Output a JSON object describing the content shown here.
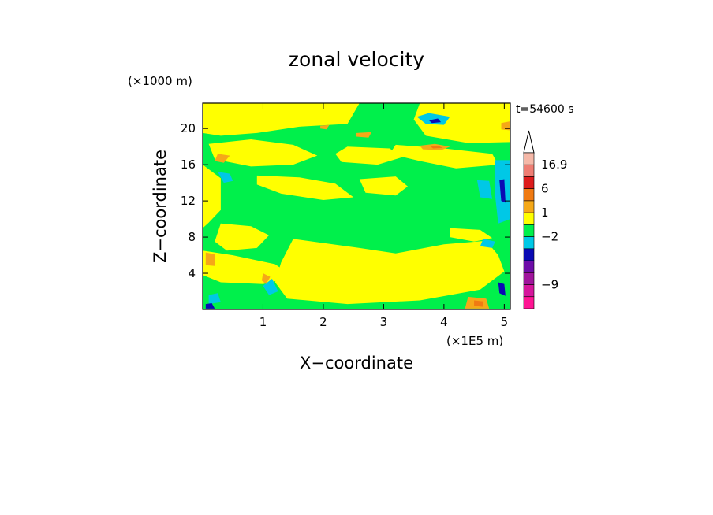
{
  "chart_data": {
    "type": "heatmap",
    "title": "zonal velocity",
    "xlabel": "X−coordinate",
    "ylabel": "Z−coordinate",
    "x_unit": "(×1E5 m)",
    "y_unit": "(×1000 m)",
    "time_label": "t=54600 s",
    "xlim": [
      0,
      5.1
    ],
    "ylim": [
      0,
      22.8
    ],
    "xticks": [
      1,
      2,
      3,
      4,
      5
    ],
    "yticks": [
      4,
      8,
      12,
      16,
      20
    ],
    "background_field": "green",
    "regions": [
      {
        "level": "yellow",
        "polygon": [
          [
            0,
            22.8
          ],
          [
            2.6,
            22.8
          ],
          [
            2.4,
            20.5
          ],
          [
            1.6,
            20.2
          ],
          [
            0.9,
            19.5
          ],
          [
            0.3,
            19.2
          ],
          [
            0,
            19.5
          ]
        ]
      },
      {
        "level": "yellow",
        "polygon": [
          [
            0.1,
            18.3
          ],
          [
            0.8,
            18.8
          ],
          [
            1.5,
            18.2
          ],
          [
            1.9,
            17.0
          ],
          [
            1.5,
            16.0
          ],
          [
            0.8,
            15.8
          ],
          [
            0.2,
            16.6
          ]
        ]
      },
      {
        "level": "yellow",
        "polygon": [
          [
            2.4,
            18.0
          ],
          [
            3.1,
            17.8
          ],
          [
            3.3,
            16.8
          ],
          [
            2.9,
            16.0
          ],
          [
            2.3,
            16.3
          ],
          [
            2.2,
            17.2
          ]
        ]
      },
      {
        "level": "yellow",
        "polygon": [
          [
            3.6,
            22.8
          ],
          [
            5.1,
            22.8
          ],
          [
            5.1,
            18.5
          ],
          [
            4.4,
            18.4
          ],
          [
            3.7,
            19.2
          ],
          [
            3.5,
            21.0
          ]
        ]
      },
      {
        "level": "yellow",
        "polygon": [
          [
            3.2,
            18.2
          ],
          [
            4.0,
            17.8
          ],
          [
            4.8,
            17.2
          ],
          [
            4.9,
            16.0
          ],
          [
            4.2,
            15.6
          ],
          [
            3.6,
            16.4
          ],
          [
            3.1,
            17.2
          ]
        ]
      },
      {
        "level": "yellow",
        "polygon": [
          [
            0.9,
            14.8
          ],
          [
            1.6,
            14.6
          ],
          [
            2.2,
            13.9
          ],
          [
            2.5,
            12.4
          ],
          [
            2.0,
            12.1
          ],
          [
            1.3,
            12.8
          ],
          [
            0.9,
            13.8
          ]
        ]
      },
      {
        "level": "yellow",
        "polygon": [
          [
            2.6,
            14.4
          ],
          [
            3.2,
            14.7
          ],
          [
            3.4,
            13.6
          ],
          [
            3.2,
            12.6
          ],
          [
            2.7,
            12.9
          ]
        ]
      },
      {
        "level": "yellow",
        "polygon": [
          [
            0,
            16.0
          ],
          [
            0.3,
            14.5
          ],
          [
            0.3,
            11.0
          ],
          [
            0.1,
            9.6
          ],
          [
            0,
            9.0
          ]
        ]
      },
      {
        "level": "yellow",
        "polygon": [
          [
            0.3,
            9.5
          ],
          [
            0.8,
            9.2
          ],
          [
            1.1,
            8.2
          ],
          [
            0.9,
            6.8
          ],
          [
            0.4,
            6.5
          ],
          [
            0.2,
            7.5
          ]
        ]
      },
      {
        "level": "yellow",
        "polygon": [
          [
            0,
            6.5
          ],
          [
            0.5,
            6.0
          ],
          [
            1.2,
            5.0
          ],
          [
            1.5,
            3.6
          ],
          [
            1.0,
            2.8
          ],
          [
            0.3,
            3.0
          ],
          [
            0,
            3.8
          ]
        ]
      },
      {
        "level": "yellow",
        "polygon": [
          [
            1.5,
            7.8
          ],
          [
            2.6,
            6.8
          ],
          [
            3.2,
            6.2
          ],
          [
            4.0,
            7.2
          ],
          [
            4.7,
            7.6
          ],
          [
            4.9,
            6.0
          ],
          [
            5.0,
            4.2
          ],
          [
            4.6,
            2.2
          ],
          [
            3.6,
            1.0
          ],
          [
            2.4,
            0.6
          ],
          [
            1.4,
            1.2
          ],
          [
            1.2,
            3.0
          ],
          [
            1.3,
            5.2
          ]
        ]
      },
      {
        "level": "yellow",
        "polygon": [
          [
            4.1,
            9.0
          ],
          [
            4.6,
            8.8
          ],
          [
            4.8,
            7.9
          ],
          [
            4.5,
            7.5
          ],
          [
            4.1,
            8.0
          ]
        ]
      },
      {
        "level": "cyan",
        "polygon": [
          [
            3.55,
            21.3
          ],
          [
            3.75,
            21.7
          ],
          [
            4.1,
            21.3
          ],
          [
            4.0,
            20.4
          ],
          [
            3.7,
            20.5
          ]
        ]
      },
      {
        "level": "blue",
        "polygon": [
          [
            3.75,
            20.9
          ],
          [
            3.9,
            21.1
          ],
          [
            3.95,
            20.7
          ],
          [
            3.8,
            20.6
          ]
        ]
      },
      {
        "level": "cyan",
        "polygon": [
          [
            0.25,
            15.2
          ],
          [
            0.45,
            15.0
          ],
          [
            0.5,
            14.2
          ],
          [
            0.35,
            14.0
          ]
        ]
      },
      {
        "level": "cyan",
        "polygon": [
          [
            4.55,
            14.3
          ],
          [
            4.75,
            14.2
          ],
          [
            4.8,
            12.2
          ],
          [
            4.6,
            12.4
          ]
        ]
      },
      {
        "level": "cyan",
        "polygon": [
          [
            4.65,
            7.8
          ],
          [
            4.85,
            7.5
          ],
          [
            4.8,
            6.8
          ],
          [
            4.6,
            7.0
          ]
        ]
      },
      {
        "level": "cyan",
        "polygon": [
          [
            4.85,
            16.5
          ],
          [
            5.1,
            16.5
          ],
          [
            5.1,
            10.0
          ],
          [
            4.9,
            9.5
          ],
          [
            4.85,
            12.5
          ]
        ]
      },
      {
        "level": "blue",
        "polygon": [
          [
            4.92,
            14.3
          ],
          [
            5.0,
            14.4
          ],
          [
            5.02,
            11.8
          ],
          [
            4.95,
            12.0
          ]
        ]
      },
      {
        "level": "blue",
        "polygon": [
          [
            4.9,
            3.0
          ],
          [
            5.0,
            2.8
          ],
          [
            5.02,
            1.5
          ],
          [
            4.92,
            1.8
          ]
        ]
      },
      {
        "level": "cyan",
        "polygon": [
          [
            1.0,
            2.6
          ],
          [
            1.15,
            3.4
          ],
          [
            1.25,
            2.0
          ],
          [
            1.1,
            1.6
          ]
        ]
      },
      {
        "level": "cyan",
        "polygon": [
          [
            0.1,
            1.6
          ],
          [
            0.25,
            1.8
          ],
          [
            0.3,
            0.8
          ],
          [
            0.1,
            0.6
          ]
        ]
      },
      {
        "level": "blue",
        "polygon": [
          [
            0.05,
            0.6
          ],
          [
            0.15,
            0.7
          ],
          [
            0.2,
            0.1
          ],
          [
            0.05,
            0.1
          ]
        ]
      },
      {
        "level": "orange-light",
        "polygon": [
          [
            3.6,
            18.1
          ],
          [
            3.85,
            18.3
          ],
          [
            4.1,
            18.0
          ],
          [
            3.95,
            17.6
          ],
          [
            3.65,
            17.7
          ]
        ]
      },
      {
        "level": "orange",
        "polygon": [
          [
            3.78,
            18.0
          ],
          [
            3.9,
            18.1
          ],
          [
            3.98,
            17.85
          ],
          [
            3.82,
            17.8
          ]
        ]
      },
      {
        "level": "orange-light",
        "polygon": [
          [
            0.25,
            17.2
          ],
          [
            0.45,
            17.0
          ],
          [
            0.35,
            16.2
          ],
          [
            0.2,
            16.4
          ]
        ]
      },
      {
        "level": "orange-light",
        "polygon": [
          [
            0.05,
            6.3
          ],
          [
            0.2,
            6.1
          ],
          [
            0.2,
            4.8
          ],
          [
            0.05,
            4.9
          ]
        ]
      },
      {
        "level": "orange-light",
        "polygon": [
          [
            1.0,
            4.0
          ],
          [
            1.12,
            3.6
          ],
          [
            1.05,
            2.8
          ],
          [
            0.98,
            3.2
          ]
        ]
      },
      {
        "level": "orange-light",
        "polygon": [
          [
            4.4,
            1.4
          ],
          [
            4.7,
            1.2
          ],
          [
            4.75,
            0.1
          ],
          [
            4.35,
            0.1
          ]
        ]
      },
      {
        "level": "orange",
        "polygon": [
          [
            4.5,
            1.0
          ],
          [
            4.65,
            0.9
          ],
          [
            4.65,
            0.3
          ],
          [
            4.5,
            0.4
          ]
        ]
      },
      {
        "level": "orange-light",
        "polygon": [
          [
            1.95,
            20.3
          ],
          [
            2.1,
            20.4
          ],
          [
            2.05,
            19.9
          ],
          [
            1.95,
            20.0
          ]
        ]
      },
      {
        "level": "orange-light",
        "polygon": [
          [
            2.55,
            19.5
          ],
          [
            2.8,
            19.6
          ],
          [
            2.75,
            19.0
          ],
          [
            2.55,
            19.1
          ]
        ]
      },
      {
        "level": "orange-light",
        "polygon": [
          [
            4.95,
            20.6
          ],
          [
            5.1,
            20.8
          ],
          [
            5.1,
            19.8
          ],
          [
            4.95,
            19.9
          ]
        ]
      }
    ],
    "colorbar": {
      "levels": [
        {
          "color": "#ffffff",
          "label": ""
        },
        {
          "color": "#f5b8a8",
          "label": "16.9"
        },
        {
          "color": "#ee7d73",
          "label": ""
        },
        {
          "color": "#dd1c1c",
          "label": "6"
        },
        {
          "color": "#f07a12",
          "label": ""
        },
        {
          "color": "#f5a818",
          "label": "1"
        },
        {
          "color": "#ffff00",
          "label": ""
        },
        {
          "color": "#00f04b",
          "label": "−2"
        },
        {
          "color": "#00c8e6",
          "label": ""
        },
        {
          "color": "#0a0ab4",
          "label": ""
        },
        {
          "color": "#6d0da8",
          "label": ""
        },
        {
          "color": "#a0159c",
          "label": "−9"
        },
        {
          "color": "#d5169c",
          "label": ""
        },
        {
          "color": "#ff1493",
          "label": ""
        }
      ]
    },
    "colors": {
      "green": "#00f04b",
      "yellow": "#ffff00",
      "cyan": "#00c8e6",
      "blue": "#0a0ab4",
      "orange-light": "#f5a818",
      "orange": "#f07a12"
    }
  }
}
